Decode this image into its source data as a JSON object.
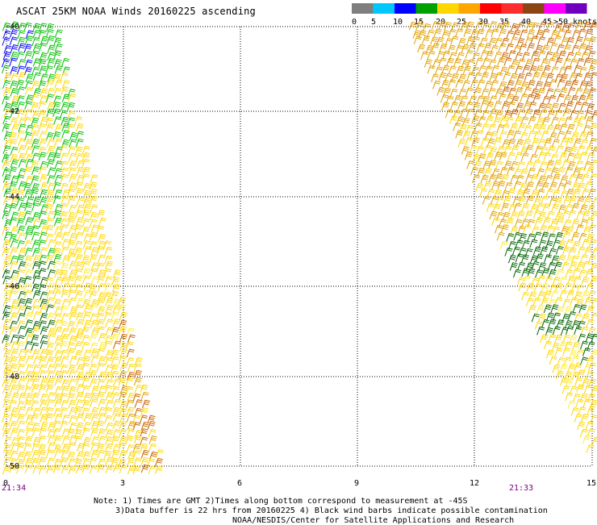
{
  "title": "ASCAT 25KM NOAA Winds 20160225 ascending",
  "legend": {
    "labels": [
      "0",
      "5",
      "10",
      "15",
      "20",
      "25",
      "30",
      "35",
      "40",
      "45",
      ">50 knots"
    ],
    "colors": [
      "#7f7f7f",
      "#00c8ff",
      "#0000ff",
      "#00a000",
      "#ffd700",
      "#ffa500",
      "#ff0000",
      "#ff2e2e",
      "#8b4513",
      "#ff00ff",
      "#7000c0"
    ]
  },
  "axes": {
    "lat_labels": [
      "-40",
      "-42",
      "-44",
      "-46",
      "-48",
      "-50"
    ],
    "lon_labels": [
      "0",
      "3",
      "6",
      "9",
      "12",
      "15"
    ]
  },
  "times": {
    "left": "21:34",
    "right": "21:33"
  },
  "notes": {
    "line1": "Note: 1) Times are GMT 2)Times along bottom correspond to measurement at -45S",
    "line2": "3)Data buffer is 22 hrs from 20160225 4) Black wind barbs indicate possible contamination",
    "line3": "NOAA/NESDIS/Center for Satellite Applications and Research"
  },
  "barb_colors": {
    "blue": "#0000ff",
    "green": "#00c000",
    "dark_green": "#006400",
    "yellow": "#ffd700",
    "light_yellow": "#ffee33",
    "orange": "#e0a000",
    "dark_orange": "#c86400"
  }
}
